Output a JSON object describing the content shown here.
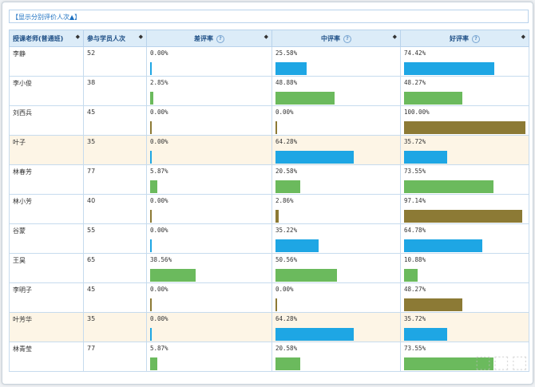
{
  "toggle_label": "【显示分别评价人次▲】",
  "headers": {
    "teacher": "授课老师(普通班)",
    "participants": "参与学员人次",
    "bad": "差评率",
    "mid": "中评率",
    "good": "好评率"
  },
  "colors": {
    "blue": "#1ea6e4",
    "green": "#6bba5d",
    "olive": "#8c7a35",
    "highlight": "#fdf5e6"
  },
  "rows": [
    {
      "name": "李静",
      "count": "52",
      "bad": "0.00%",
      "mid": "25.58%",
      "good": "74.42%",
      "bad_v": 0.0,
      "mid_v": 25.58,
      "good_v": 74.42,
      "bad_c": "blue",
      "mid_c": "blue",
      "good_c": "blue",
      "hl": false
    },
    {
      "name": "李小俊",
      "count": "38",
      "bad": "2.85%",
      "mid": "48.88%",
      "good": "48.27%",
      "bad_v": 2.85,
      "mid_v": 48.88,
      "good_v": 48.27,
      "bad_c": "green",
      "mid_c": "green",
      "good_c": "green",
      "hl": false
    },
    {
      "name": "刘西兵",
      "count": "45",
      "bad": "0.00%",
      "mid": "0.00%",
      "good": "100.00%",
      "bad_v": 0.0,
      "mid_v": 0.0,
      "good_v": 100.0,
      "bad_c": "olive",
      "mid_c": "olive",
      "good_c": "olive",
      "hl": false
    },
    {
      "name": "叶子",
      "count": "35",
      "bad": "0.00%",
      "mid": "64.28%",
      "good": "35.72%",
      "bad_v": 0.0,
      "mid_v": 64.28,
      "good_v": 35.72,
      "bad_c": "blue",
      "mid_c": "blue",
      "good_c": "blue",
      "hl": true
    },
    {
      "name": "林春芳",
      "count": "77",
      "bad": "5.87%",
      "mid": "20.58%",
      "good": "73.55%",
      "bad_v": 5.87,
      "mid_v": 20.58,
      "good_v": 73.55,
      "bad_c": "green",
      "mid_c": "green",
      "good_c": "green",
      "hl": false
    },
    {
      "name": "林小芳",
      "count": "40",
      "bad": "0.00%",
      "mid": "2.86%",
      "good": "97.14%",
      "bad_v": 0.0,
      "mid_v": 2.86,
      "good_v": 97.14,
      "bad_c": "olive",
      "mid_c": "olive",
      "good_c": "olive",
      "hl": false
    },
    {
      "name": "谷蒙",
      "count": "55",
      "bad": "0.00%",
      "mid": "35.22%",
      "good": "64.78%",
      "bad_v": 0.0,
      "mid_v": 35.22,
      "good_v": 64.78,
      "bad_c": "blue",
      "mid_c": "blue",
      "good_c": "blue",
      "hl": false
    },
    {
      "name": "王昊",
      "count": "65",
      "bad": "38.56%",
      "mid": "50.56%",
      "good": "10.88%",
      "bad_v": 38.56,
      "mid_v": 50.56,
      "good_v": 10.88,
      "bad_c": "green",
      "mid_c": "green",
      "good_c": "green",
      "hl": false
    },
    {
      "name": "李明子",
      "count": "45",
      "bad": "0.00%",
      "mid": "0.00%",
      "good": "48.27%",
      "bad_v": 0.0,
      "mid_v": 0.0,
      "good_v": 48.27,
      "bad_c": "olive",
      "mid_c": "olive",
      "good_c": "olive",
      "hl": false
    },
    {
      "name": "叶芳华",
      "count": "35",
      "bad": "0.00%",
      "mid": "64.28%",
      "good": "35.72%",
      "bad_v": 0.0,
      "mid_v": 64.28,
      "good_v": 35.72,
      "bad_c": "blue",
      "mid_c": "blue",
      "good_c": "blue",
      "hl": true
    },
    {
      "name": "林青莹",
      "count": "77",
      "bad": "5.87%",
      "mid": "20.58%",
      "good": "73.55%",
      "bad_v": 5.87,
      "mid_v": 20.58,
      "good_v": 73.55,
      "bad_c": "green",
      "mid_c": "green",
      "good_c": "green",
      "hl": false
    }
  ]
}
